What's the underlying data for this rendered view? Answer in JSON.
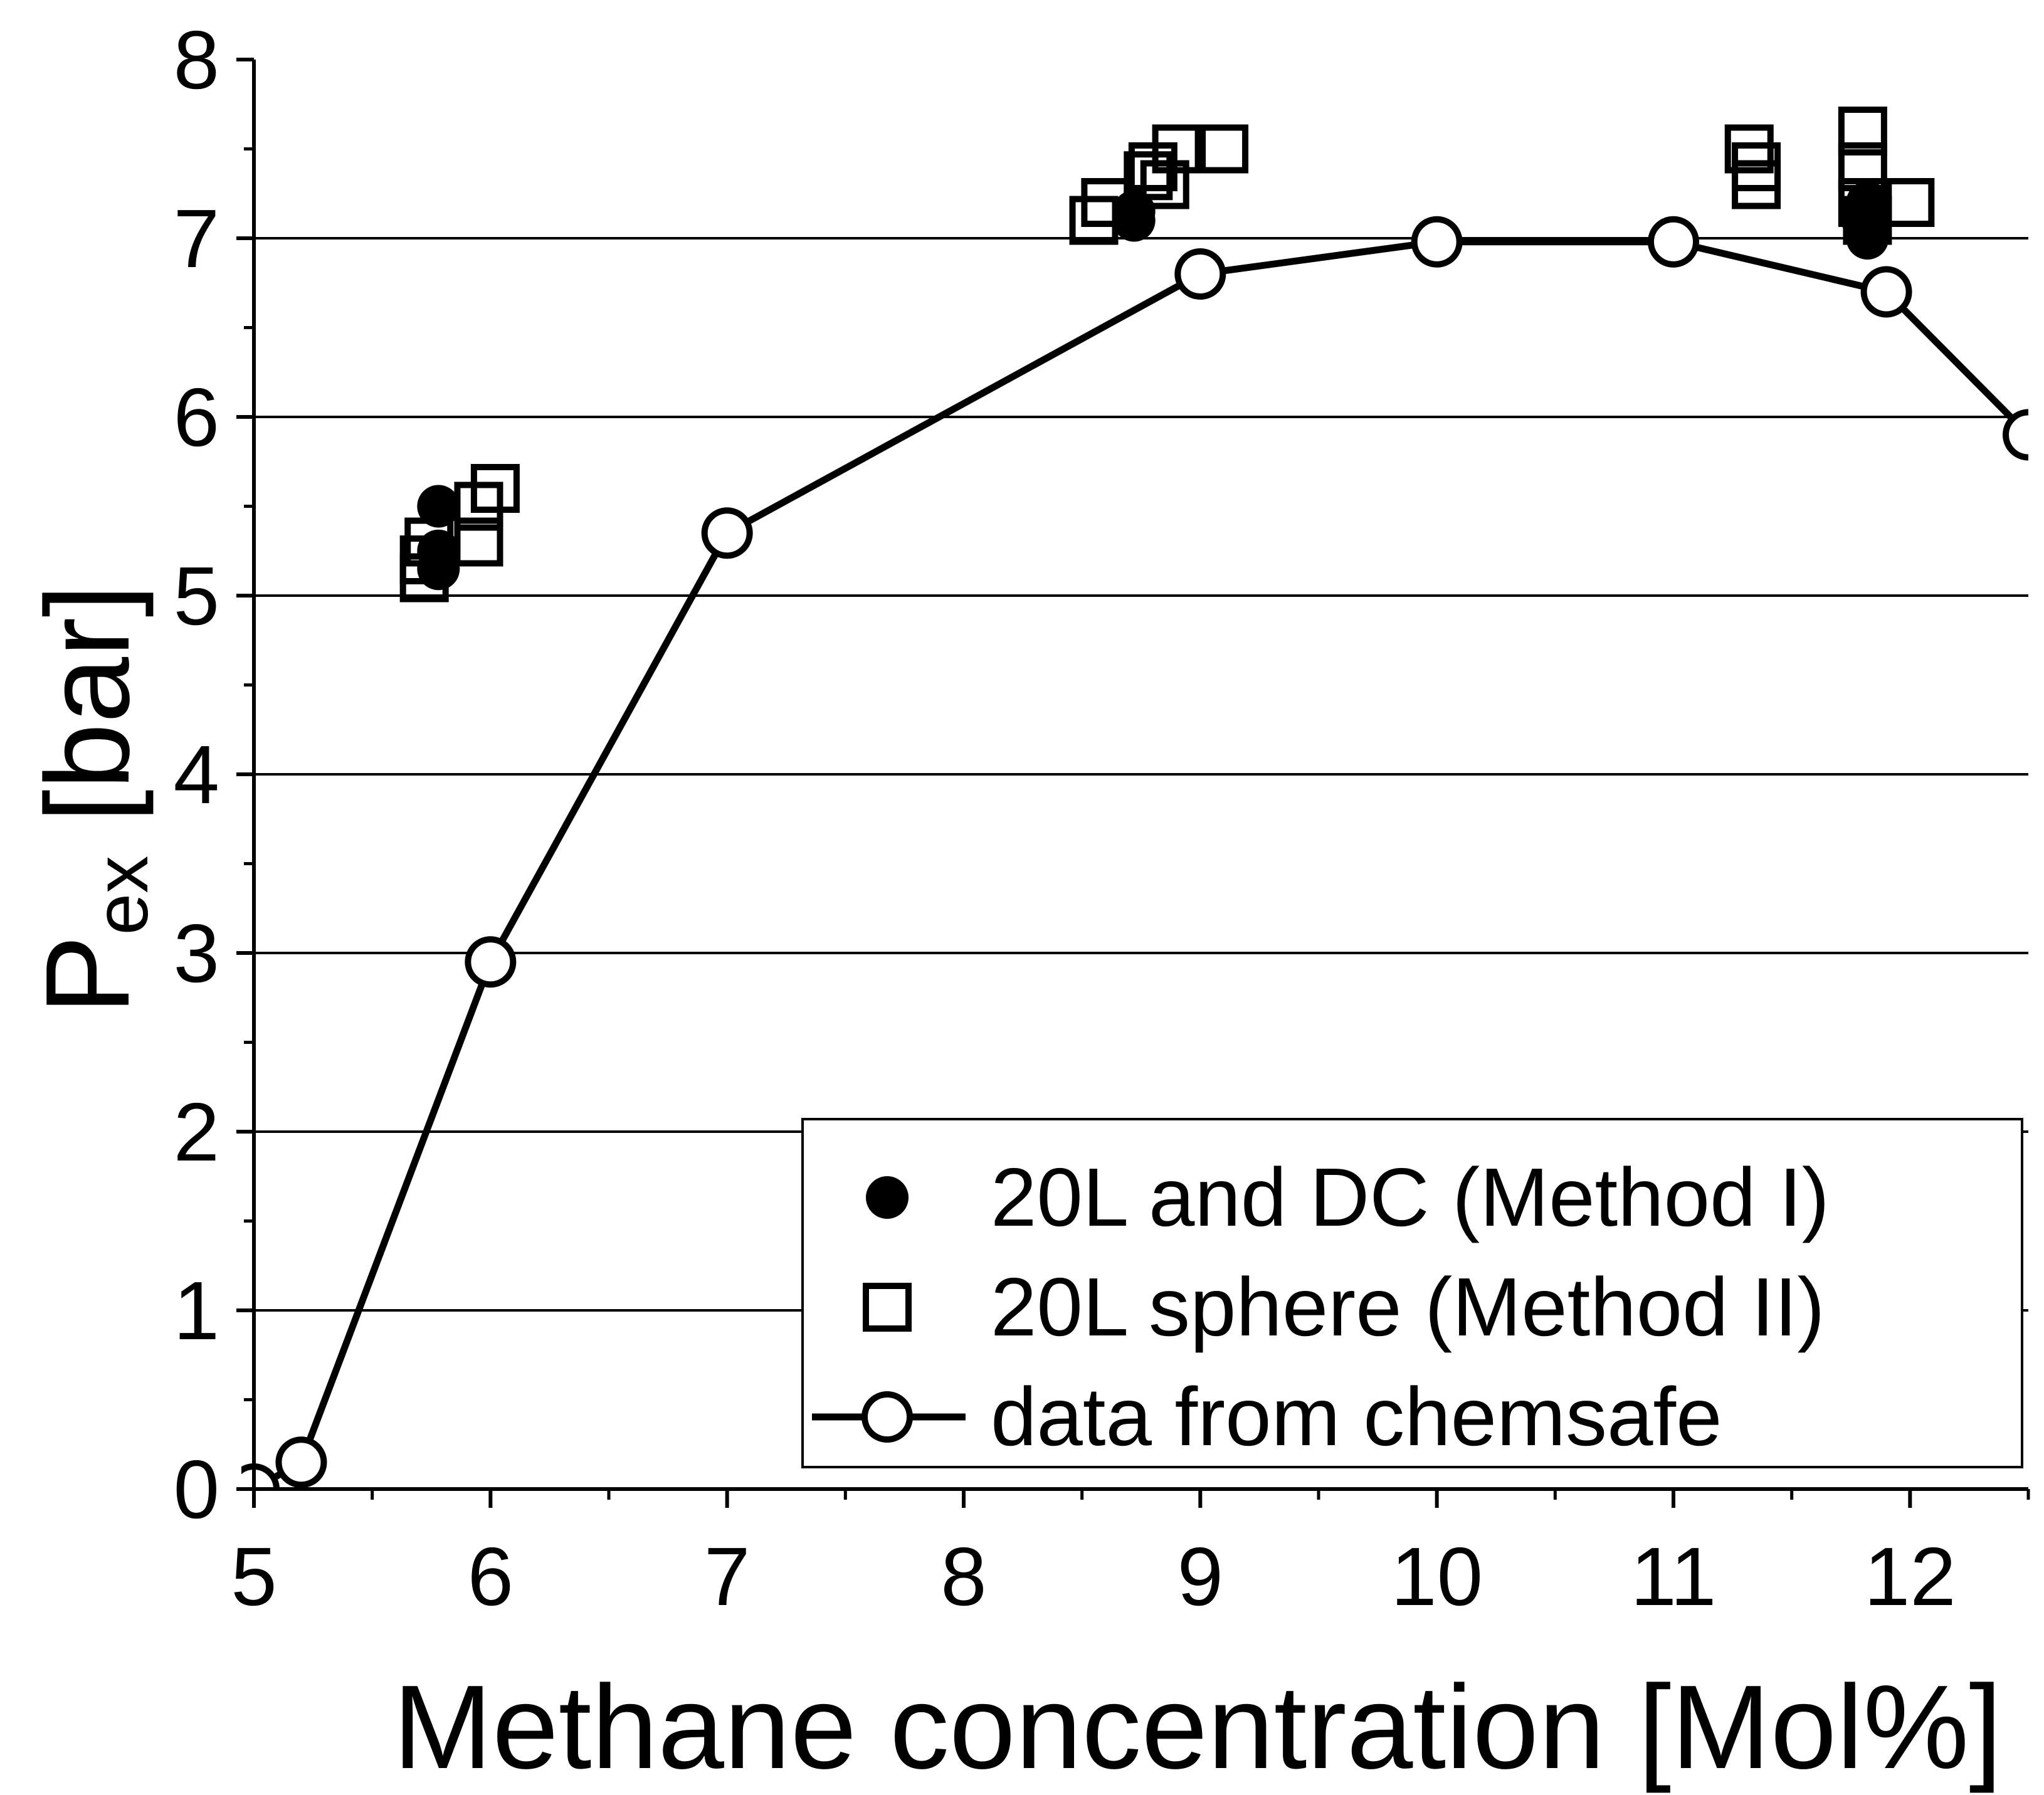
{
  "chart_data": {
    "type": "scatter",
    "title": "",
    "xlabel": "Methane concentration [Mol%]",
    "ylabel": {
      "main": "P",
      "sub": "ex",
      "unit": " [bar]"
    },
    "xlim": [
      5,
      12.5
    ],
    "ylim": [
      0,
      8
    ],
    "x_ticks": [
      5,
      6,
      7,
      8,
      9,
      10,
      11,
      12
    ],
    "y_ticks": [
      0,
      1,
      2,
      3,
      4,
      5,
      6,
      7,
      8
    ],
    "grid": {
      "horizontal": true,
      "vertical": false
    },
    "legend_position": "bottom-right",
    "series": [
      {
        "name": "20L and DC (Method I)",
        "marker": "filled-circle",
        "points": [
          [
            5.78,
            5.5
          ],
          [
            5.78,
            5.25
          ],
          [
            5.78,
            5.15
          ],
          [
            8.72,
            7.15
          ],
          [
            8.72,
            7.1
          ],
          [
            11.8,
            7.1
          ],
          [
            11.82,
            7.0
          ],
          [
            11.82,
            7.2
          ]
        ]
      },
      {
        "name": "20L sphere (Method II)",
        "marker": "open-square",
        "points": [
          [
            5.72,
            5.1
          ],
          [
            5.72,
            5.2
          ],
          [
            5.74,
            5.3
          ],
          [
            5.95,
            5.5
          ],
          [
            6.02,
            5.6
          ],
          [
            5.95,
            5.3
          ],
          [
            8.55,
            7.1
          ],
          [
            8.6,
            7.2
          ],
          [
            8.78,
            7.35
          ],
          [
            8.85,
            7.3
          ],
          [
            8.9,
            7.5
          ],
          [
            9.1,
            7.5
          ],
          [
            8.8,
            7.4
          ],
          [
            11.32,
            7.5
          ],
          [
            11.35,
            7.4
          ],
          [
            11.35,
            7.3
          ],
          [
            11.8,
            7.6
          ],
          [
            11.8,
            7.4
          ],
          [
            11.8,
            7.2
          ],
          [
            11.82,
            7.1
          ],
          [
            12.0,
            7.2
          ]
        ]
      },
      {
        "name": "data from chemsafe",
        "marker": "open-circle-line",
        "points": [
          [
            5.0,
            0.0
          ],
          [
            5.2,
            0.15
          ],
          [
            6.0,
            2.95
          ],
          [
            7.0,
            5.35
          ],
          [
            9.0,
            6.8
          ],
          [
            10.0,
            6.98
          ],
          [
            11.0,
            6.98
          ],
          [
            11.9,
            6.7
          ],
          [
            12.5,
            5.9
          ]
        ]
      }
    ]
  }
}
